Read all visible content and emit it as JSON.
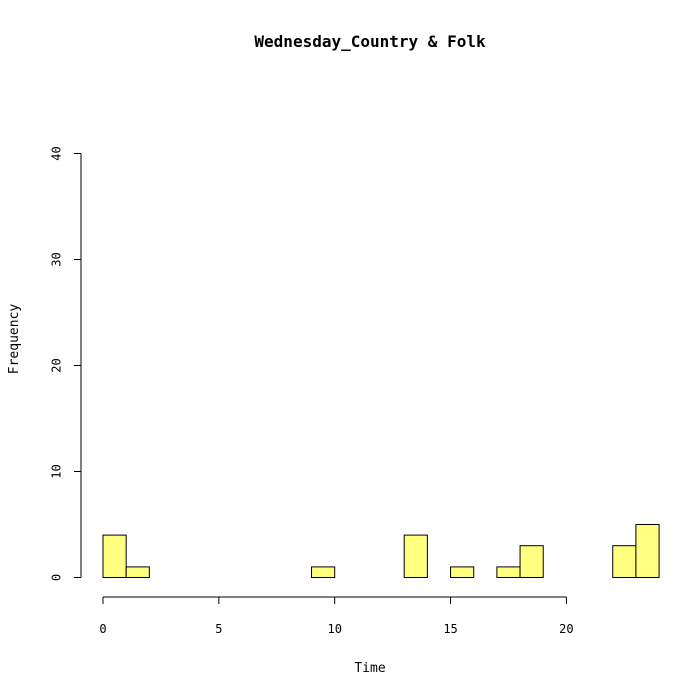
{
  "chart_data": {
    "type": "bar",
    "title": "Wednesday_Country & Folk",
    "xlabel": "Time",
    "ylabel": "Frequency",
    "bar_color": "#ffff80",
    "bin_width": 1,
    "xlim": [
      0,
      24
    ],
    "ylim": [
      0,
      40
    ],
    "x_ticks": [
      0,
      5,
      10,
      15,
      20
    ],
    "y_ticks": [
      0,
      10,
      20,
      30,
      40
    ],
    "bins": [
      {
        "start": 0,
        "end": 1,
        "count": 4
      },
      {
        "start": 1,
        "end": 2,
        "count": 1
      },
      {
        "start": 9,
        "end": 10,
        "count": 1
      },
      {
        "start": 13,
        "end": 14,
        "count": 4
      },
      {
        "start": 15,
        "end": 16,
        "count": 1
      },
      {
        "start": 17,
        "end": 18,
        "count": 1
      },
      {
        "start": 18,
        "end": 19,
        "count": 3
      },
      {
        "start": 22,
        "end": 23,
        "count": 3
      },
      {
        "start": 23,
        "end": 24,
        "count": 5
      }
    ]
  }
}
